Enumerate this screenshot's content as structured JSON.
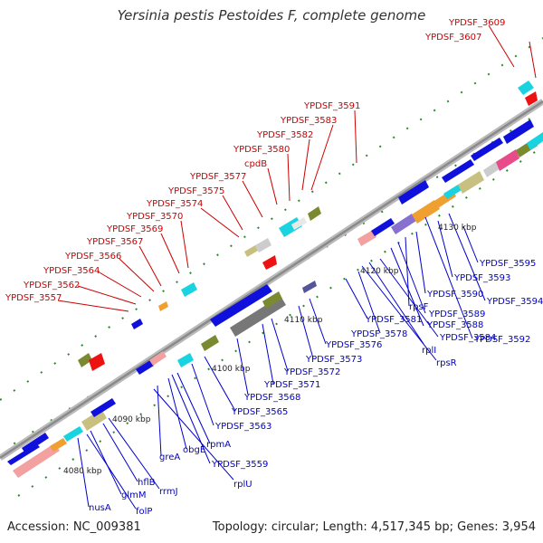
{
  "title": "Yersinia pestis Pestoides F, complete genome",
  "footer": {
    "accession": "Accession: NC_009381",
    "topology": "Topology: circular; Length: 4,517,345 bp; Genes: 3,954"
  },
  "colors": {
    "upper_labels": "#cc0000",
    "lower_labels": "#0000cc",
    "backbone": "#999999"
  },
  "kbp_ticks": [
    "4080 kbp",
    "4090 kbp",
    "4100 kbp",
    "4110 kbp",
    "4120 kbp",
    "4130 kbp"
  ],
  "upper_labels": [
    "YPDSF_3609",
    "YPDSF_3607",
    "YPDSF_3591",
    "YPDSF_3583",
    "YPDSF_3582",
    "YPDSF_3580",
    "cpdB",
    "YPDSF_3577",
    "YPDSF_3575",
    "YPDSF_3574",
    "YPDSF_3570",
    "YPDSF_3569",
    "YPDSF_3567",
    "YPDSF_3566",
    "YPDSF_3564",
    "YPDSF_3562",
    "YPDSF_3557"
  ],
  "lower_labels": [
    "YPDSF_3595",
    "YPDSF_3593",
    "YPDSF_3594",
    "YPDSF_3590",
    "rpsF",
    "YPDSF_3589",
    "YPDSF_3588",
    "YPDSF_3592",
    "YPDSF_3581",
    "YPDSF_3584",
    "YPDSF_3578",
    "rplI",
    "rpsR",
    "YPDSF_3576",
    "YPDSF_3573",
    "YPDSF_3572",
    "YPDSF_3571",
    "YPDSF_3568",
    "YPDSF_3565",
    "YPDSF_3563",
    "rpmA",
    "obgE",
    "greA",
    "YPDSF_3559",
    "rplU",
    "rrmJ",
    "hflB",
    "glmM",
    "nusA",
    "folP"
  ]
}
